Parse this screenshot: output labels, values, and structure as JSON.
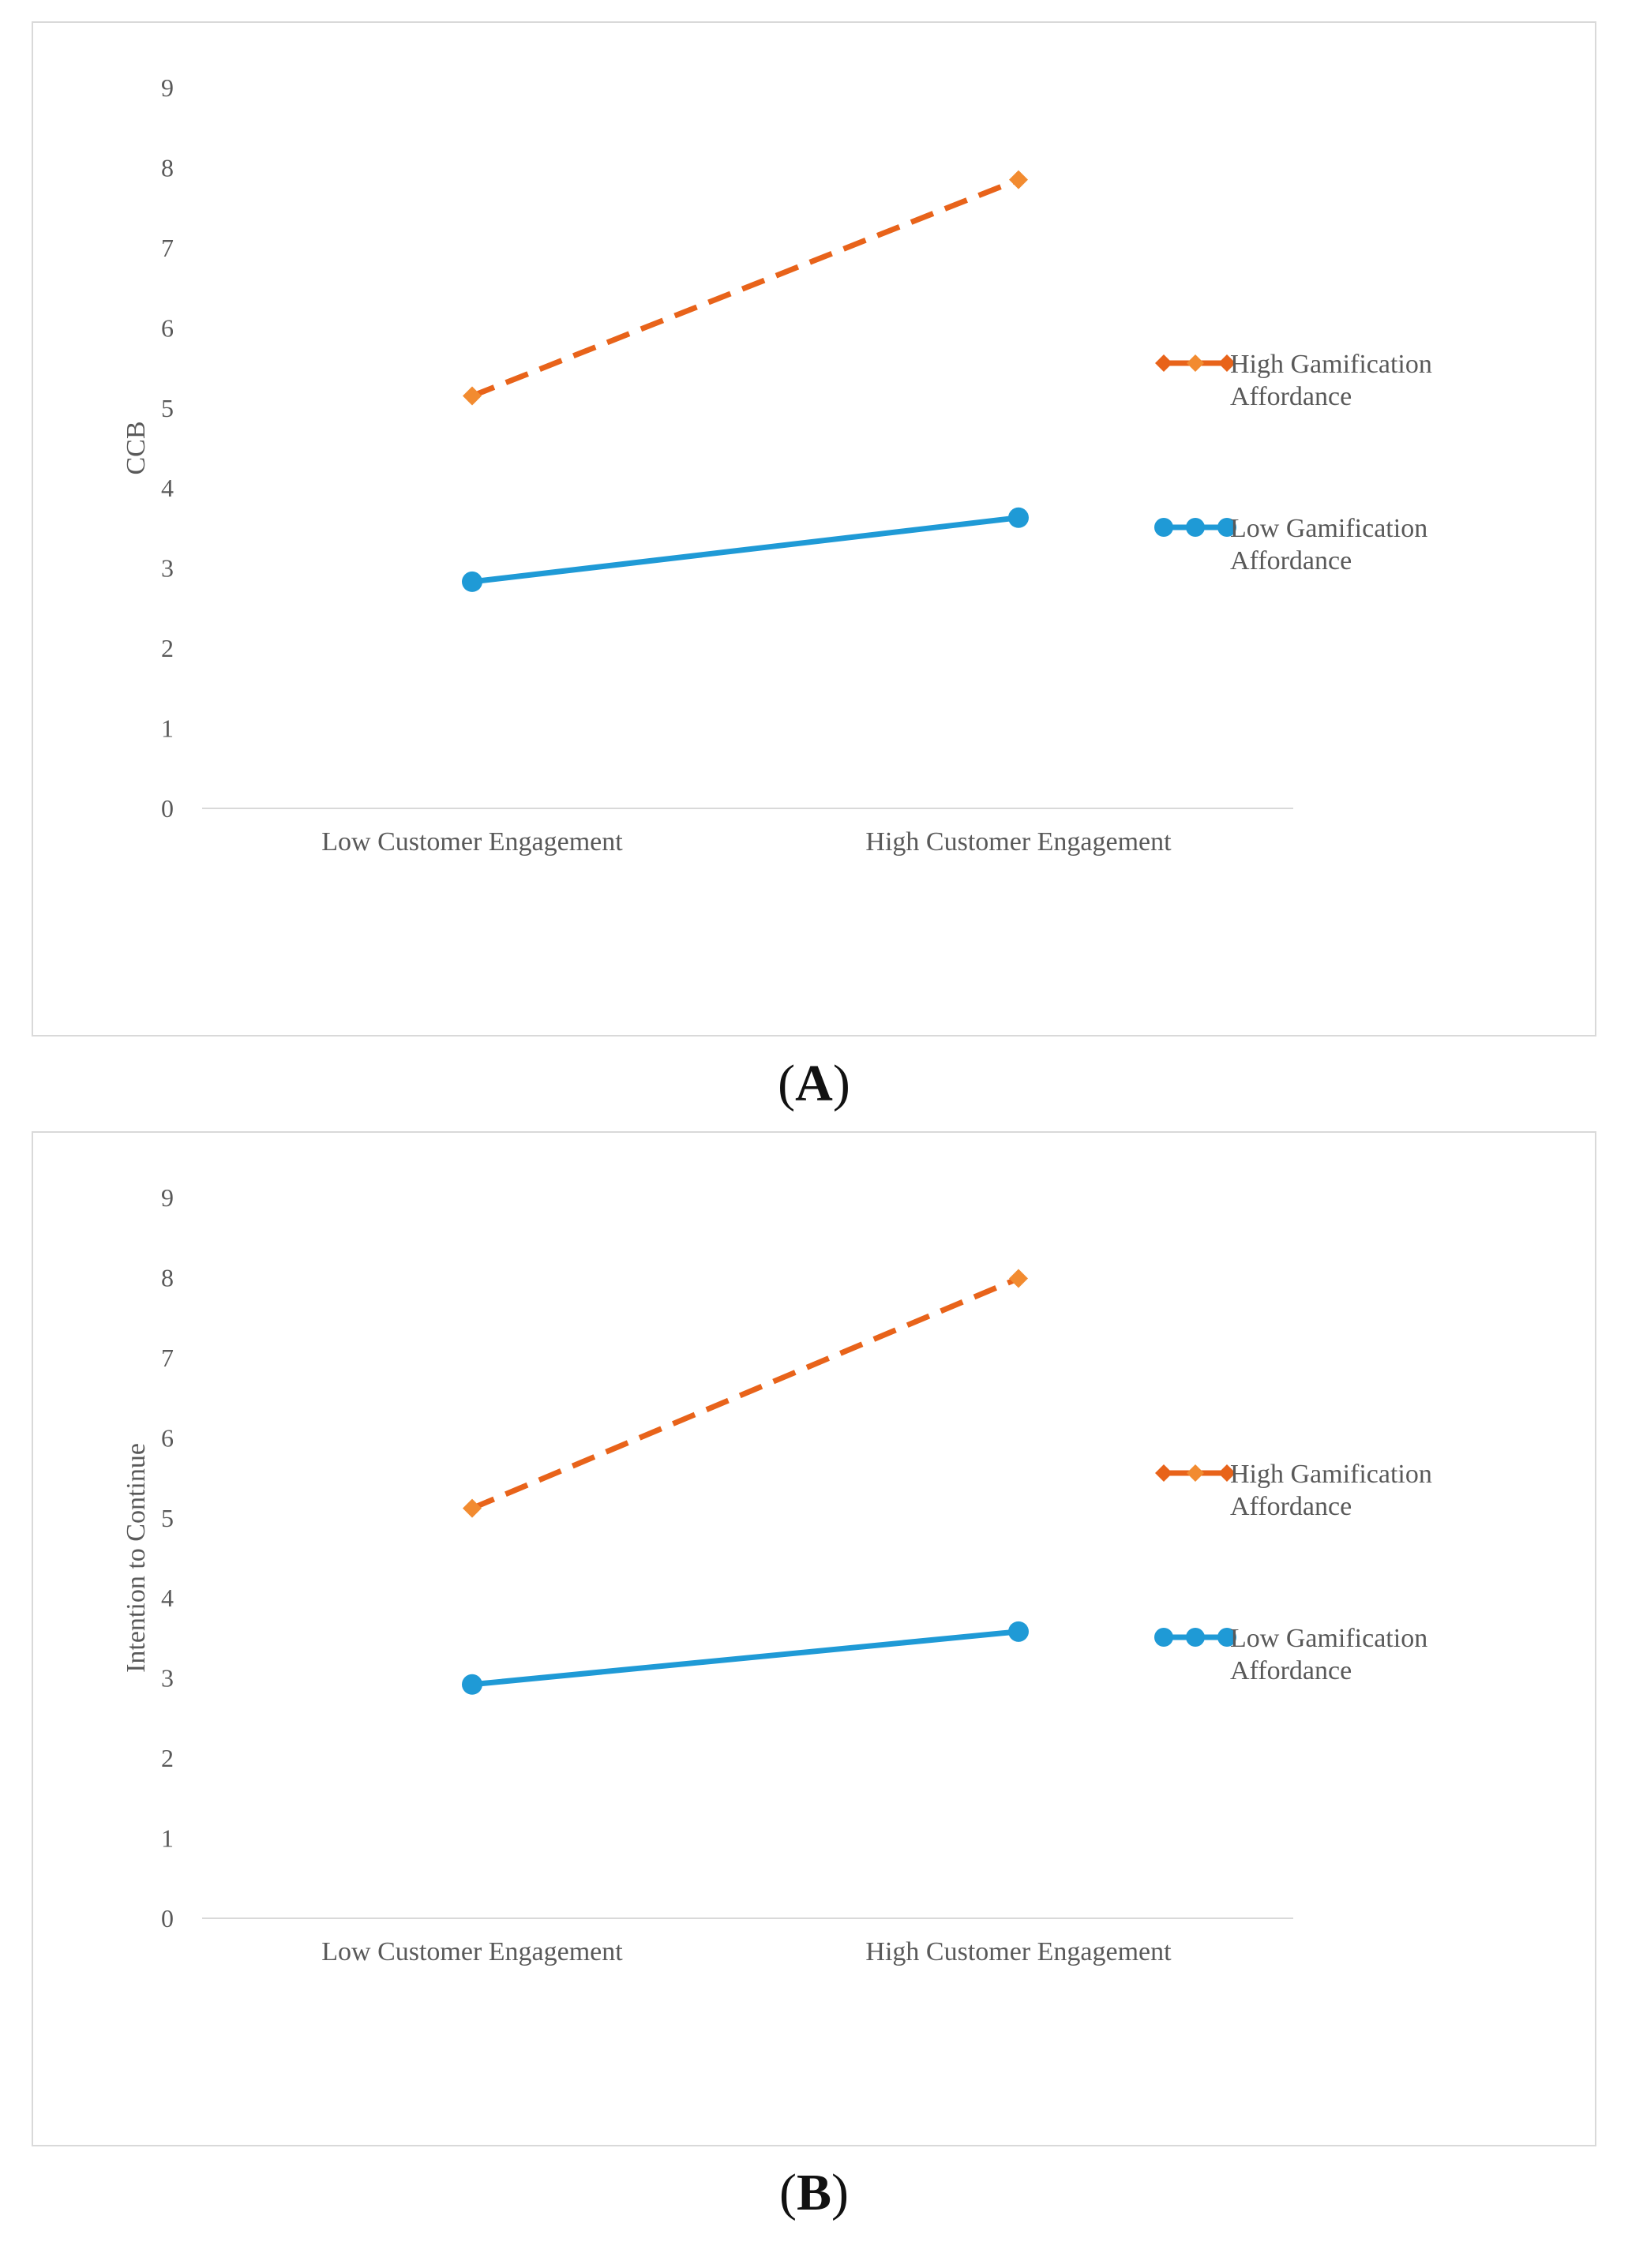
{
  "chart_data": [
    {
      "type": "line",
      "panel_label": "A",
      "title": "",
      "xlabel": "",
      "ylabel": "CCB",
      "ylim": [
        0,
        9
      ],
      "yticks": [
        0,
        1,
        2,
        3,
        4,
        5,
        6,
        7,
        8,
        9
      ],
      "categories": [
        "Low Customer Engagement",
        "High Customer Engagement"
      ],
      "series": [
        {
          "name": "High Gamification Affordance",
          "legend_lines": [
            "High Gamification",
            "Affordance"
          ],
          "values": [
            5.15,
            7.85
          ],
          "color": "#E8631A",
          "marker_color": "#F28B30",
          "style": "dashed",
          "marker": "diamond"
        },
        {
          "name": "Low Gamification Affordance",
          "legend_lines": [
            "Low Gamification",
            "Affordance"
          ],
          "values": [
            2.83,
            3.63
          ],
          "color": "#1F9AD6",
          "marker_color": "#1F9AD6",
          "style": "solid",
          "marker": "circle"
        }
      ],
      "legend_position": "right",
      "grid": false
    },
    {
      "type": "line",
      "panel_label": "B",
      "title": "",
      "xlabel": "",
      "ylabel": "Intention to Continue",
      "ylim": [
        0,
        9
      ],
      "yticks": [
        0,
        1,
        2,
        3,
        4,
        5,
        6,
        7,
        8,
        9
      ],
      "categories": [
        "Low Customer Engagement",
        "High Customer Engagement"
      ],
      "series": [
        {
          "name": "High Gamification Affordance",
          "legend_lines": [
            "High Gamification",
            "Affordance"
          ],
          "values": [
            5.12,
            7.99
          ],
          "color": "#E8631A",
          "marker_color": "#F28B30",
          "style": "dashed",
          "marker": "diamond"
        },
        {
          "name": "Low Gamification Affordance",
          "legend_lines": [
            "Low Gamification",
            "Affordance"
          ],
          "values": [
            2.92,
            3.58
          ],
          "color": "#1F9AD6",
          "marker_color": "#1F9AD6",
          "style": "solid",
          "marker": "circle"
        }
      ],
      "legend_position": "right",
      "grid": false
    }
  ]
}
